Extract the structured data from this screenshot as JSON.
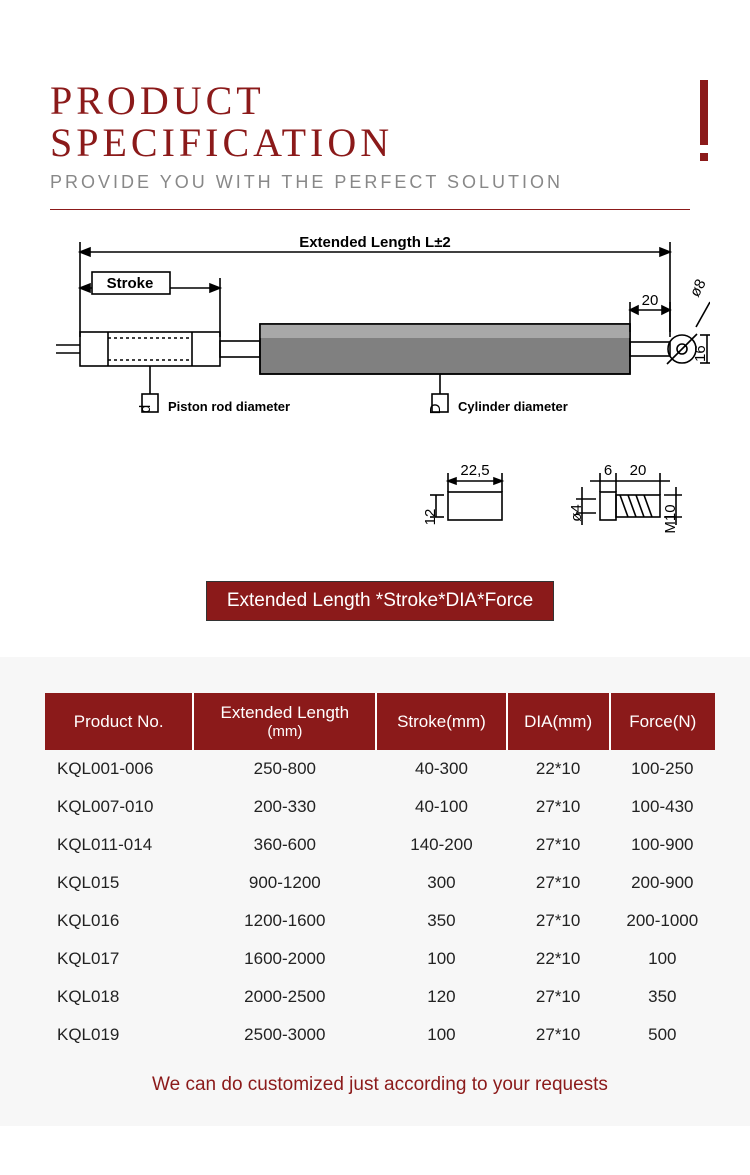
{
  "header": {
    "title_line1": "PRODUCT",
    "title_line2": "SPECIFICATION",
    "subtitle": "PROVIDE YOU WITH THE PERFECT SOLUTION",
    "title_color": "#8b1a1a",
    "subtitle_color": "#888888"
  },
  "diagram": {
    "extended_length_label": "Extended Length L±2",
    "stroke_label": "Stroke",
    "piston_rod_label": "Piston rod diameter",
    "piston_rod_symbol": "d",
    "cylinder_label": "Cylinder diameter",
    "cylinder_symbol": "D",
    "dim_tip_len": "20",
    "dim_tip_dia": "ø8",
    "dim_tip_height": "16",
    "detail_a_w": "22,5",
    "detail_a_h": "12",
    "detail_b_gap": "6",
    "detail_b_len": "20",
    "detail_b_hole": "ø4",
    "detail_b_thread": "M10",
    "line_color": "#000000",
    "cylinder_fill": "#808080"
  },
  "badge": {
    "text": "Extended Length *Stroke*DIA*Force",
    "bg": "#8b1a1a",
    "fg": "#ffffff"
  },
  "table": {
    "header_bg": "#8b1a1a",
    "header_fg": "#ffffff",
    "columns": [
      {
        "label": "Product No.",
        "unit": ""
      },
      {
        "label": "Extended Length",
        "unit": "(mm)"
      },
      {
        "label": "Stroke(mm)",
        "unit": ""
      },
      {
        "label": "DIA(mm)",
        "unit": ""
      },
      {
        "label": "Force(N)",
        "unit": ""
      }
    ],
    "rows": [
      [
        "KQL001-006",
        "250-800",
        "40-300",
        "22*10",
        "100-250"
      ],
      [
        "KQL007-010",
        "200-330",
        "40-100",
        "27*10",
        "100-430"
      ],
      [
        "KQL011-014",
        "360-600",
        "140-200",
        "27*10",
        "100-900"
      ],
      [
        "KQL015",
        "900-1200",
        "300",
        "27*10",
        "200-900"
      ],
      [
        "KQL016",
        "1200-1600",
        "350",
        "27*10",
        "200-1000"
      ],
      [
        "KQL017",
        "1600-2000",
        "100",
        "22*10",
        "100"
      ],
      [
        "KQL018",
        "2000-2500",
        "120",
        "27*10",
        "350"
      ],
      [
        "KQL019",
        "2500-3000",
        "100",
        "27*10",
        "500"
      ]
    ]
  },
  "footnote": "We can do customized just according to your requests"
}
